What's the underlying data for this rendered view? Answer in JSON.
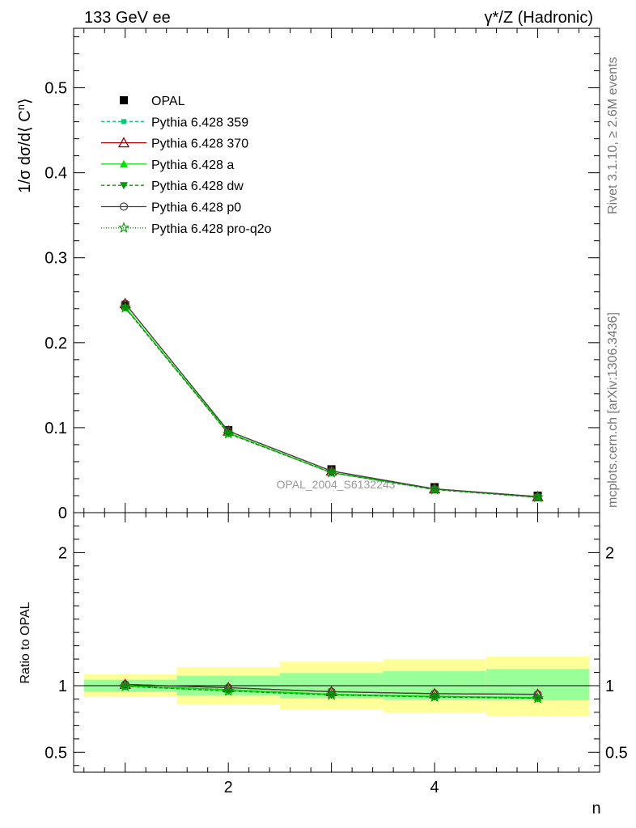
{
  "header": {
    "left": "133 GeV ee",
    "right": "γ*/Z (Hadronic)"
  },
  "side_text": {
    "top": "Rivet 3.1.10, ≥ 2.6M events",
    "bottom": "mcplots.cern.ch [arXiv:1306.3436]"
  },
  "watermark": "OPAL_2004_S6132243",
  "colors": {
    "data": "#000000",
    "band_inner": "#99ff99",
    "band_outer": "#ffff99",
    "pythia_359": "#00cc77",
    "pythia_370": "#990000",
    "pythia_a": "#00dd00",
    "pythia_dw": "#009900",
    "pythia_p0": "#444444",
    "pythia_proq2o": "#009900"
  },
  "chart_data": [
    {
      "type": "line",
      "name": "main",
      "ylabel_parts": {
        "pre": "1/σ dσ/d⟨ C",
        "sup": "n",
        "post": "⟩"
      },
      "xlim": [
        0.5,
        5.6
      ],
      "ylim": [
        0,
        0.57
      ],
      "yticks": [
        0,
        0.1,
        0.2,
        0.3,
        0.4,
        0.5
      ],
      "ytick_labels": [
        "0",
        "0.1",
        "0.2",
        "0.3",
        "0.4",
        "0.5"
      ],
      "x": [
        1,
        2,
        3,
        4,
        5
      ],
      "data": {
        "name": "OPAL",
        "values": [
          0.244,
          0.097,
          0.051,
          0.03,
          0.02
        ]
      },
      "series": [
        {
          "name": "Pythia 6.428 359",
          "key": "pythia_359",
          "marker": "square-small",
          "dash": "4,3",
          "values": [
            0.242,
            0.094,
            0.047,
            0.028,
            0.0182
          ]
        },
        {
          "name": "Pythia 6.428 370",
          "key": "pythia_370",
          "marker": "triangle-open",
          "dash": "",
          "values": [
            0.246,
            0.096,
            0.049,
            0.028,
            0.0188
          ]
        },
        {
          "name": "Pythia 6.428 a",
          "key": "pythia_a",
          "marker": "triangle",
          "dash": "",
          "values": [
            0.242,
            0.094,
            0.047,
            0.028,
            0.0183
          ]
        },
        {
          "name": "Pythia 6.428 dw",
          "key": "pythia_dw",
          "marker": "triangle-down",
          "dash": "4,3",
          "values": [
            0.241,
            0.093,
            0.047,
            0.027,
            0.018
          ]
        },
        {
          "name": "Pythia 6.428 p0",
          "key": "pythia_p0",
          "marker": "circle-open",
          "dash": "",
          "values": [
            0.246,
            0.096,
            0.049,
            0.028,
            0.0188
          ]
        },
        {
          "name": "Pythia 6.428 pro-q2o",
          "key": "pythia_proq2o",
          "marker": "star-open",
          "dash": "1,2",
          "values": [
            0.241,
            0.093,
            0.047,
            0.027,
            0.018
          ]
        }
      ]
    },
    {
      "type": "line",
      "name": "ratio",
      "ylabel": "Ratio to OPAL",
      "xlabel": "n",
      "xlim": [
        0.5,
        5.6
      ],
      "ylim": [
        0.35,
        2.3
      ],
      "yticks": [
        0.5,
        1,
        2
      ],
      "ytick_labels": [
        "0.5",
        "1",
        "2"
      ],
      "xticks": [
        2,
        4
      ],
      "xtick_labels": [
        "2",
        "4"
      ],
      "x": [
        1,
        2,
        3,
        4,
        5
      ],
      "bins": [
        [
          0.6,
          1.5
        ],
        [
          1.5,
          2.5
        ],
        [
          2.5,
          3.5
        ],
        [
          3.5,
          4.5
        ],
        [
          4.5,
          5.5
        ]
      ],
      "band_inner": [
        [
          0.955,
          1.045
        ],
        [
          0.925,
          1.075
        ],
        [
          0.905,
          1.095
        ],
        [
          0.895,
          1.11
        ],
        [
          0.89,
          1.125
        ]
      ],
      "band_outer": [
        [
          0.915,
          1.085
        ],
        [
          0.86,
          1.14
        ],
        [
          0.82,
          1.18
        ],
        [
          0.8,
          1.2
        ],
        [
          0.775,
          1.22
        ]
      ],
      "series": [
        {
          "key": "pythia_359",
          "marker": "square-small",
          "dash": "4,3",
          "values": [
            1.0,
            0.97,
            0.935,
            0.92,
            0.91
          ]
        },
        {
          "key": "pythia_370",
          "marker": "triangle-open",
          "dash": "",
          "values": [
            1.01,
            0.985,
            0.955,
            0.94,
            0.935
          ]
        },
        {
          "key": "pythia_a",
          "marker": "triangle",
          "dash": "",
          "values": [
            1.0,
            0.97,
            0.935,
            0.92,
            0.91
          ]
        },
        {
          "key": "pythia_dw",
          "marker": "triangle-down",
          "dash": "4,3",
          "values": [
            0.995,
            0.96,
            0.93,
            0.915,
            0.905
          ]
        },
        {
          "key": "pythia_p0",
          "marker": "circle-open",
          "dash": "",
          "values": [
            1.01,
            0.985,
            0.955,
            0.94,
            0.935
          ]
        },
        {
          "key": "pythia_proq2o",
          "marker": "star-open",
          "dash": "1,2",
          "values": [
            0.995,
            0.96,
            0.93,
            0.915,
            0.905
          ]
        }
      ]
    }
  ]
}
